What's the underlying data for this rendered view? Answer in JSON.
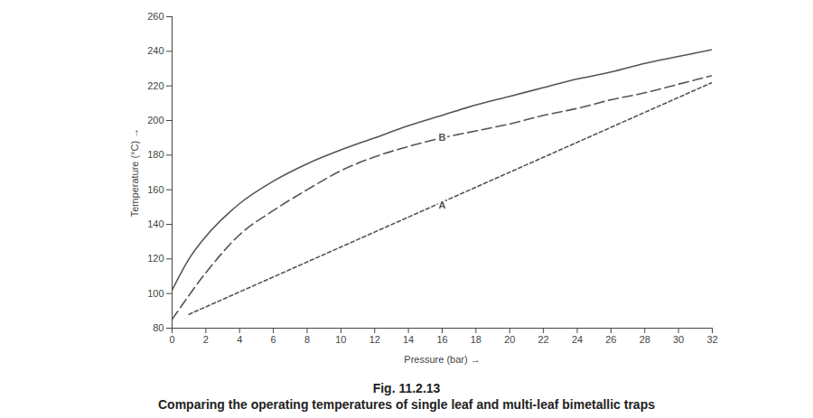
{
  "chart_data": {
    "type": "line",
    "title": "Fig. 11.2.13",
    "subtitle": "Comparing the operating temperatures of single leaf and multi-leaf bimetallic traps",
    "x_label": "Pressure (bar)",
    "y_label": "Temperature (°C)",
    "xlim": [
      0,
      32
    ],
    "xticks": [
      0,
      2,
      4,
      6,
      8,
      10,
      12,
      14,
      16,
      18,
      20,
      22,
      24,
      26,
      28,
      30,
      32
    ],
    "ylim": [
      80,
      260
    ],
    "yticks": [
      80,
      100,
      120,
      140,
      160,
      180,
      200,
      220,
      240,
      260
    ],
    "grid": false,
    "series": [
      {
        "color": "#555555",
        "line_style": "solid",
        "x": [
          0,
          1,
          2,
          4,
          6,
          8,
          10,
          12,
          14,
          16,
          18,
          20,
          22,
          24,
          26,
          28,
          30,
          32
        ],
        "values": [
          102,
          120,
          133,
          152,
          165,
          175,
          183,
          190,
          197,
          203,
          209,
          214,
          219,
          224,
          228,
          233,
          237,
          241
        ]
      },
      {
        "color": "#555555",
        "line_style": "dashed",
        "x": [
          0,
          2,
          4,
          6,
          8,
          10,
          12,
          14,
          16,
          18,
          20,
          22,
          24,
          26,
          28,
          30,
          32
        ],
        "values": [
          85,
          112,
          134,
          148,
          160,
          171,
          179,
          185,
          190,
          194,
          198,
          203,
          207,
          212,
          216,
          221,
          226
        ]
      },
      {
        "color": "#555555",
        "line_style": "dotted",
        "x": [
          1,
          32
        ],
        "values": [
          88,
          222
        ]
      }
    ],
    "annotations": [
      {
        "text": "B",
        "x": 16,
        "y": 190
      },
      {
        "text": "A",
        "x": 16,
        "y": 151
      }
    ]
  }
}
